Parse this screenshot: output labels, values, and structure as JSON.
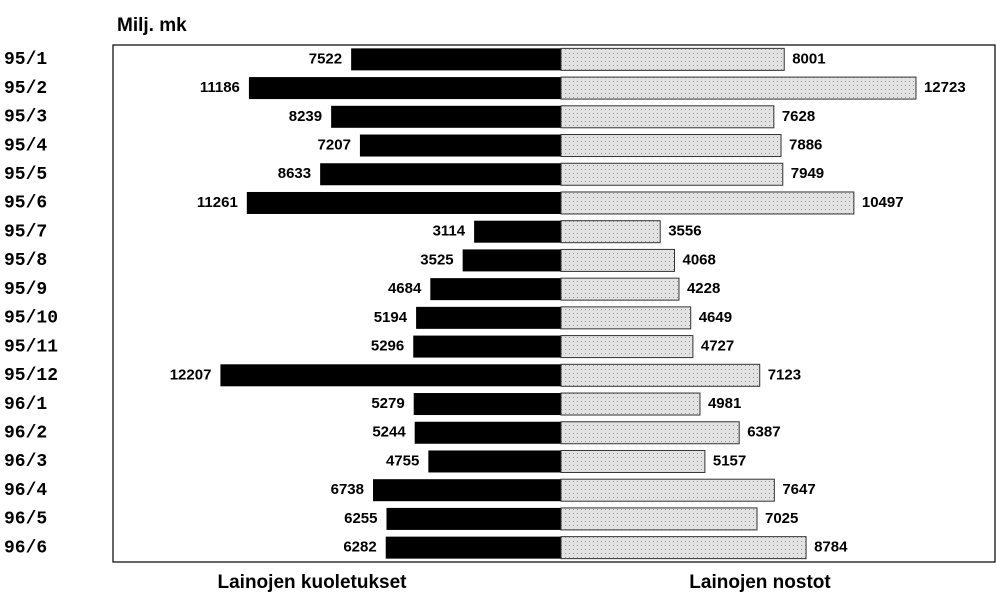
{
  "chart_data": {
    "type": "bar",
    "orientation": "horizontal",
    "layout": "diverging",
    "unit_label": "Milj. mk",
    "categories": [
      "95/1",
      "95/2",
      "95/3",
      "95/4",
      "95/5",
      "95/6",
      "95/7",
      "95/8",
      "95/9",
      "95/10",
      "95/11",
      "95/12",
      "96/1",
      "96/2",
      "96/3",
      "96/4",
      "96/5",
      "96/6"
    ],
    "series": [
      {
        "name": "Lainojen kuoletukset",
        "color": "#000000",
        "side": "left",
        "values": [
          7522,
          11186,
          8239,
          7207,
          8633,
          11261,
          3114,
          3525,
          4684,
          5194,
          5296,
          12207,
          5279,
          5244,
          4755,
          6738,
          6255,
          6282
        ]
      },
      {
        "name": "Lainojen nostot",
        "color": "#e2e2e2",
        "side": "right",
        "values": [
          8001,
          12723,
          7628,
          7886,
          7949,
          10497,
          3556,
          4068,
          4228,
          4649,
          4727,
          7123,
          4981,
          6387,
          5157,
          7647,
          7025,
          8784
        ]
      }
    ]
  }
}
